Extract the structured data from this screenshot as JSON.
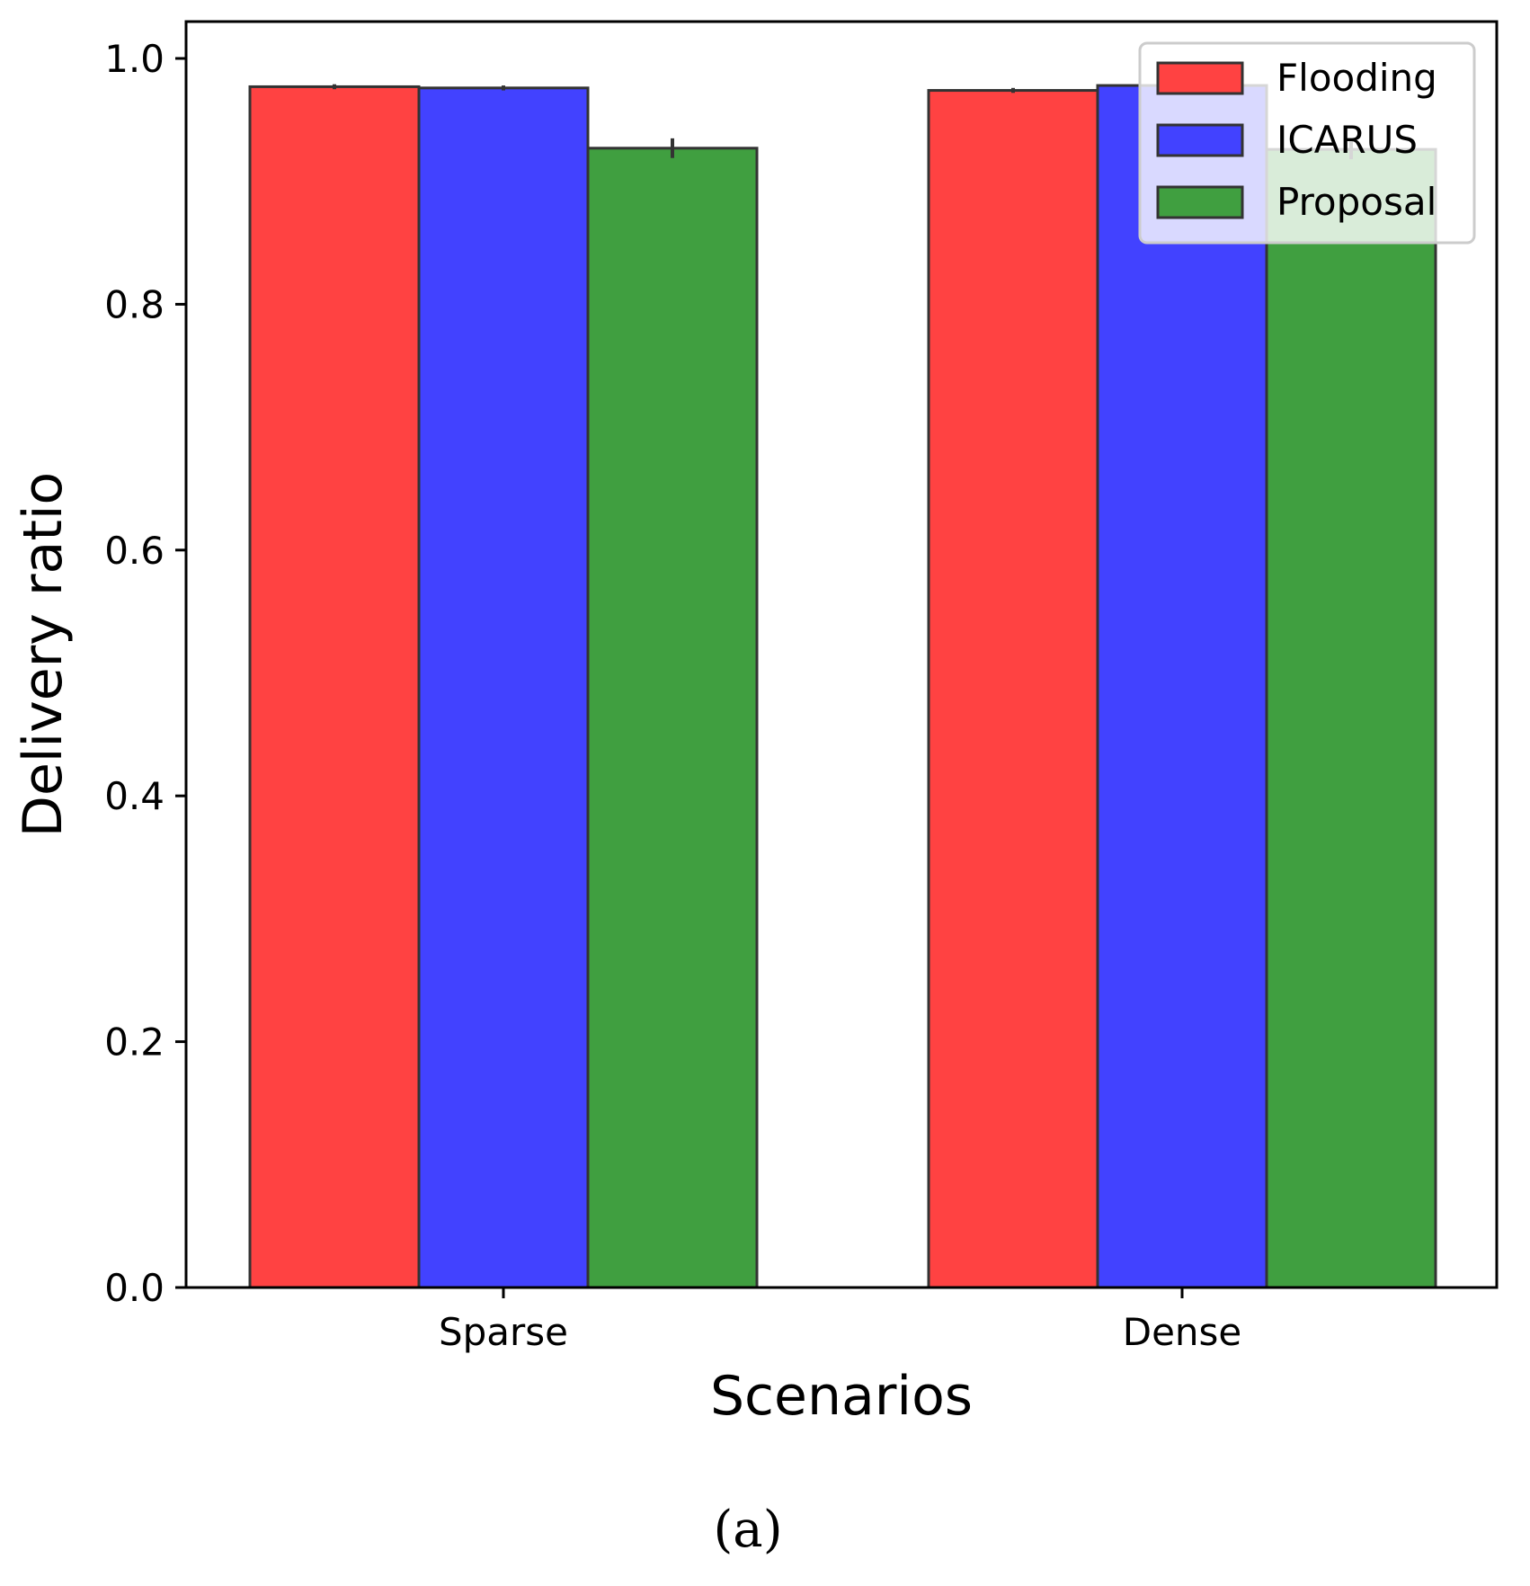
{
  "chart_data": {
    "type": "bar",
    "title": "",
    "xlabel": "Scenarios",
    "ylabel": "Delivery ratio",
    "categories": [
      "Sparse",
      "Dense"
    ],
    "ylim": [
      0,
      1.03
    ],
    "yticks": [
      0.0,
      0.2,
      0.4,
      0.6,
      0.8,
      1.0
    ],
    "ytick_labels": [
      "0.0",
      "0.2",
      "0.4",
      "0.6",
      "0.8",
      "1.0"
    ],
    "grid": false,
    "legend_position": "top-right",
    "series": [
      {
        "name": "Flooding",
        "color": "#ff4242",
        "values": [
          0.977,
          0.974
        ],
        "errors": [
          0.002,
          0.002
        ]
      },
      {
        "name": "ICARUS",
        "color": "#4242ff",
        "values": [
          0.976,
          0.978
        ],
        "errors": [
          0.002,
          0.002
        ]
      },
      {
        "name": "Proposal",
        "color": "#409f40",
        "values": [
          0.927,
          0.926
        ],
        "errors": [
          0.008,
          0.008
        ]
      }
    ]
  },
  "caption": "(a)"
}
